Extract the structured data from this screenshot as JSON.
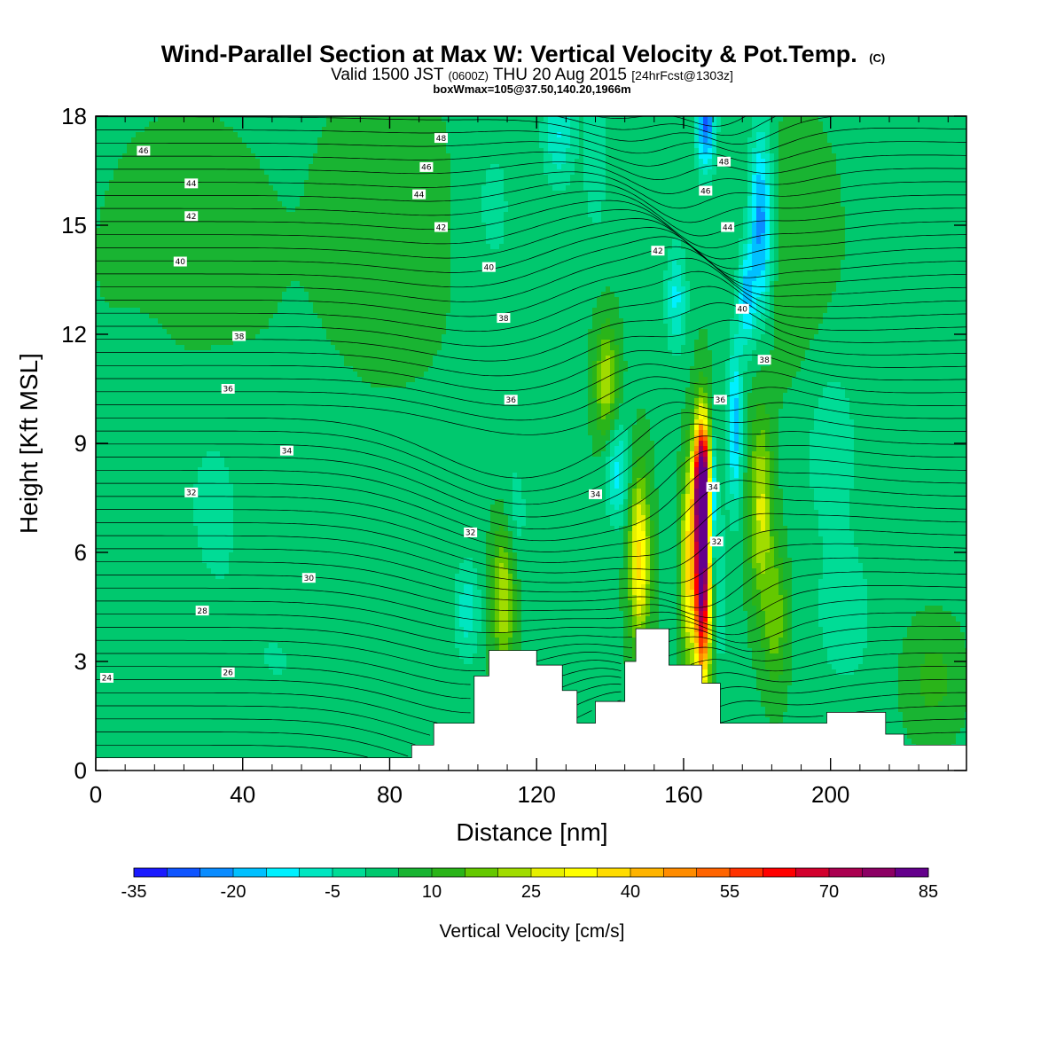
{
  "header": {
    "title_main": "Wind-Parallel Section at Max W: Vertical Velocity & Pot.Temp.",
    "copyright": "(C)",
    "valid_prefix": "Valid 1500 JST",
    "valid_utc": "(0600Z)",
    "valid_date": "THU 20 Aug 2015",
    "forecast": "[24hrFcst@1303z]",
    "box_info": "boxWmax=105@37.50,140.20,1966m"
  },
  "colorbar": {
    "title": "Vertical Velocity [cm/s]",
    "levels": [
      -35,
      -30,
      -25,
      -20,
      -15,
      -10,
      -5,
      0,
      5,
      10,
      15,
      20,
      25,
      30,
      35,
      40,
      45,
      50,
      55,
      60,
      65,
      70,
      75,
      80,
      85
    ],
    "tick_labels": [
      "-35",
      "-20",
      "-5",
      "10",
      "25",
      "40",
      "55",
      "70",
      "85"
    ],
    "colors": [
      "#1a1aff",
      "#0f55ff",
      "#0a8cff",
      "#00c0ff",
      "#00f0ff",
      "#00e6c0",
      "#00dc96",
      "#00c86e",
      "#19b432",
      "#2ab419",
      "#64c800",
      "#a0dc00",
      "#e6f000",
      "#ffff00",
      "#ffdc00",
      "#ffb400",
      "#ff8c00",
      "#ff6400",
      "#ff3200",
      "#ff0000",
      "#d2002d",
      "#aa0050",
      "#8c0064",
      "#64008c"
    ]
  },
  "chart_data": {
    "type": "contour",
    "xlabel": "Distance [nm]",
    "ylabel": "Height [Kft MSL]",
    "xlim": [
      0,
      237
    ],
    "ylim": [
      0,
      18
    ],
    "x_ticks": [
      0,
      40,
      80,
      120,
      160,
      200
    ],
    "x_tick_labels": [
      "0",
      "40",
      "80",
      "120",
      "160",
      "200"
    ],
    "y_ticks": [
      0,
      3,
      6,
      9,
      12,
      15,
      18
    ],
    "y_tick_labels": [
      "0",
      "3",
      "6",
      "9",
      "12",
      "15",
      "18"
    ],
    "terrain_kft": [
      [
        0,
        0.35
      ],
      [
        86,
        0.35
      ],
      [
        86,
        0.7
      ],
      [
        92,
        0.7
      ],
      [
        92,
        1.3
      ],
      [
        103,
        1.3
      ],
      [
        103,
        2.6
      ],
      [
        107,
        2.6
      ],
      [
        107,
        3.3
      ],
      [
        120,
        3.3
      ],
      [
        120,
        2.9
      ],
      [
        127,
        2.9
      ],
      [
        127,
        2.2
      ],
      [
        131,
        2.2
      ],
      [
        131,
        1.3
      ],
      [
        136,
        1.3
      ],
      [
        136,
        1.9
      ],
      [
        144,
        1.9
      ],
      [
        144,
        3.0
      ],
      [
        147,
        3.0
      ],
      [
        147,
        3.9
      ],
      [
        156,
        3.9
      ],
      [
        156,
        2.9
      ],
      [
        165,
        2.9
      ],
      [
        165,
        2.4
      ],
      [
        170,
        2.4
      ],
      [
        170,
        1.3
      ],
      [
        199,
        1.3
      ],
      [
        199,
        1.6
      ],
      [
        215,
        1.6
      ],
      [
        215,
        1.0
      ],
      [
        220,
        1.0
      ],
      [
        220,
        0.7
      ],
      [
        237,
        0.7
      ],
      [
        237,
        0.35
      ],
      [
        237,
        0
      ]
    ],
    "theta_label_values": [
      24,
      26,
      28,
      30,
      32,
      34,
      36,
      38,
      40,
      42,
      44,
      46,
      48
    ],
    "theta_contour_labels": [
      {
        "text": "46",
        "x": 13,
        "y": 17.05
      },
      {
        "text": "44",
        "x": 26,
        "y": 16.15
      },
      {
        "text": "42",
        "x": 26,
        "y": 15.25
      },
      {
        "text": "40",
        "x": 23,
        "y": 14.0
      },
      {
        "text": "38",
        "x": 39,
        "y": 11.95
      },
      {
        "text": "36",
        "x": 36,
        "y": 10.5
      },
      {
        "text": "34",
        "x": 52,
        "y": 8.8
      },
      {
        "text": "32",
        "x": 26,
        "y": 7.65
      },
      {
        "text": "30",
        "x": 58,
        "y": 5.3
      },
      {
        "text": "28",
        "x": 29,
        "y": 4.4
      },
      {
        "text": "26",
        "x": 36,
        "y": 2.7
      },
      {
        "text": "24",
        "x": 3,
        "y": 2.55
      },
      {
        "text": "48",
        "x": 94,
        "y": 17.4
      },
      {
        "text": "46",
        "x": 90,
        "y": 16.6
      },
      {
        "text": "44",
        "x": 88,
        "y": 15.85
      },
      {
        "text": "42",
        "x": 94,
        "y": 14.95
      },
      {
        "text": "40",
        "x": 107,
        "y": 13.85
      },
      {
        "text": "38",
        "x": 111,
        "y": 12.45
      },
      {
        "text": "36",
        "x": 113,
        "y": 10.2
      },
      {
        "text": "34",
        "x": 136,
        "y": 7.6
      },
      {
        "text": "32",
        "x": 102,
        "y": 6.55
      },
      {
        "text": "42",
        "x": 153,
        "y": 14.3
      },
      {
        "text": "48",
        "x": 171,
        "y": 16.75
      },
      {
        "text": "46",
        "x": 166,
        "y": 15.95
      },
      {
        "text": "44",
        "x": 172,
        "y": 14.95
      },
      {
        "text": "40",
        "x": 176,
        "y": 12.7
      },
      {
        "text": "38",
        "x": 182,
        "y": 11.3
      },
      {
        "text": "36",
        "x": 170,
        "y": 10.2
      },
      {
        "text": "34",
        "x": 168,
        "y": 7.8
      },
      {
        "text": "32",
        "x": 169,
        "y": 6.3
      }
    ],
    "w_features": [
      {
        "x": 111,
        "y": 5.0,
        "sx": 2.2,
        "sy": 1.6,
        "w": 22
      },
      {
        "x": 113,
        "y": 7.0,
        "sx": 3.0,
        "sy": 1.2,
        "w": -9
      },
      {
        "x": 101,
        "y": 4.4,
        "sx": 2.5,
        "sy": 1.0,
        "w": -12
      },
      {
        "x": 139,
        "y": 10.7,
        "sx": 2.2,
        "sy": 1.1,
        "w": 20
      },
      {
        "x": 148,
        "y": 5.8,
        "sx": 2.0,
        "sy": 1.6,
        "w": 33
      },
      {
        "x": 142,
        "y": 8.2,
        "sx": 2.2,
        "sy": 1.0,
        "w": -16
      },
      {
        "x": 165,
        "y": 5.6,
        "sx": 1.6,
        "sy": 2.2,
        "w": 85
      },
      {
        "x": 165,
        "y": 8.0,
        "sx": 1.6,
        "sy": 1.1,
        "w": 55
      },
      {
        "x": 161,
        "y": 5.6,
        "sx": 1.2,
        "sy": 1.8,
        "w": 30
      },
      {
        "x": 168,
        "y": 7.5,
        "sx": 0.8,
        "sy": 1.2,
        "w": -30
      },
      {
        "x": 174,
        "y": 9.5,
        "sx": 1.4,
        "sy": 1.6,
        "w": -22
      },
      {
        "x": 170,
        "y": 5.0,
        "sx": 1.4,
        "sy": 1.5,
        "w": -10
      },
      {
        "x": 181,
        "y": 7.2,
        "sx": 2.2,
        "sy": 1.8,
        "w": 22
      },
      {
        "x": 185,
        "y": 4.2,
        "sx": 2.2,
        "sy": 1.3,
        "w": 15
      },
      {
        "x": 181,
        "y": 15.0,
        "sx": 2.2,
        "sy": 1.8,
        "w": -28
      },
      {
        "x": 177,
        "y": 13.0,
        "sx": 1.6,
        "sy": 1.0,
        "w": -20
      },
      {
        "x": 166,
        "y": 17.8,
        "sx": 1.8,
        "sy": 0.9,
        "w": -30
      },
      {
        "x": 158,
        "y": 13.0,
        "sx": 2.0,
        "sy": 1.0,
        "w": -15
      },
      {
        "x": 136,
        "y": 16.8,
        "sx": 2.5,
        "sy": 1.5,
        "w": -8
      },
      {
        "x": 126,
        "y": 17.5,
        "sx": 3.0,
        "sy": 1.0,
        "w": -14
      },
      {
        "x": 108,
        "y": 15.5,
        "sx": 6.0,
        "sy": 2.2,
        "w": -5
      },
      {
        "x": 32,
        "y": 7.5,
        "sx": 8.0,
        "sy": 2.5,
        "w": -5
      },
      {
        "x": 14,
        "y": 10.5,
        "sx": 6.0,
        "sy": 1.5,
        "w": -4
      },
      {
        "x": 50,
        "y": 3.0,
        "sx": 12.0,
        "sy": 1.8,
        "w": -4
      },
      {
        "x": 200,
        "y": 9.0,
        "sx": 6.0,
        "sy": 2.0,
        "w": -7
      },
      {
        "x": 204,
        "y": 4.2,
        "sx": 6.0,
        "sy": 1.5,
        "w": -7
      },
      {
        "x": 190,
        "y": 14.0,
        "sx": 8.0,
        "sy": 2.5,
        "w": 5
      },
      {
        "x": 80,
        "y": 15.0,
        "sx": 12.0,
        "sy": 2.5,
        "w": 5
      },
      {
        "x": 25,
        "y": 14.0,
        "sx": 15.0,
        "sy": 2.5,
        "w": 4
      },
      {
        "x": 228,
        "y": 2.5,
        "sx": 5.0,
        "sy": 1.0,
        "w": 8
      }
    ]
  }
}
